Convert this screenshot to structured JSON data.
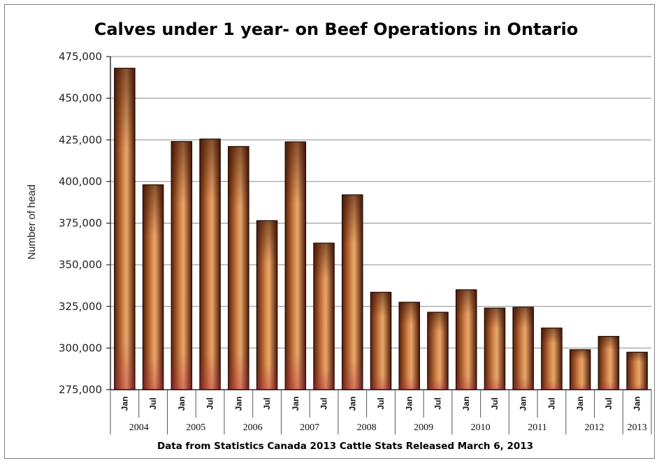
{
  "chart_data": {
    "type": "bar",
    "title": "Calves under 1 year- on Beef Operations in Ontario",
    "ylabel": "Number of head",
    "xlabel": "",
    "source_note": "Data from Statistics Canada 2013 Cattle Stats Released March 6, 2013",
    "ylim": [
      275000,
      475000
    ],
    "yticks": [
      "275,000",
      "300,000",
      "325,000",
      "350,000",
      "375,000",
      "400,000",
      "425,000",
      "450,000",
      "475,000"
    ],
    "grid": true,
    "legend": "none",
    "categories": [
      "Jan",
      "Jul",
      "Jan",
      "Jul",
      "Jan",
      "Jul",
      "Jan",
      "Jul",
      "Jan",
      "Jul",
      "Jan",
      "Jul",
      "Jan",
      "Jul",
      "Jan",
      "Jul",
      "Jan",
      "Jul",
      "Jan"
    ],
    "years": [
      {
        "label": "2004",
        "span": 2
      },
      {
        "label": "2005",
        "span": 2
      },
      {
        "label": "2006",
        "span": 2
      },
      {
        "label": "2007",
        "span": 2
      },
      {
        "label": "2008",
        "span": 2
      },
      {
        "label": "2009",
        "span": 2
      },
      {
        "label": "2010",
        "span": 2
      },
      {
        "label": "2011",
        "span": 2
      },
      {
        "label": "2012",
        "span": 2
      },
      {
        "label": "2013",
        "span": 1
      }
    ],
    "values": [
      468000,
      398000,
      424000,
      425500,
      421000,
      376500,
      423800,
      363000,
      392000,
      333500,
      327500,
      321500,
      335000,
      324000,
      324500,
      312000,
      299000,
      307000,
      297500
    ],
    "colors": {
      "bar_dark": "#5a1e08",
      "bar_mid": "#c9733a",
      "bar_light": "#f0bf86",
      "grid": "#8c8c8c",
      "axis": "#000000"
    }
  }
}
